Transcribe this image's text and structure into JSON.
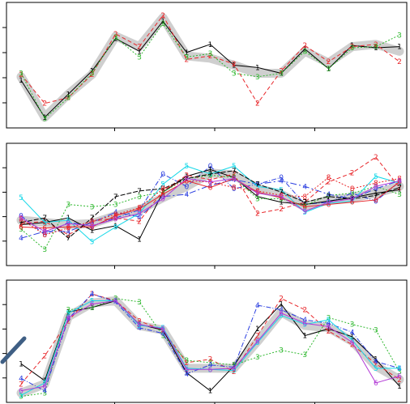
{
  "chart_data": [
    {
      "type": "line",
      "title": "",
      "xlabel": "",
      "ylabel": "",
      "x": [
        0,
        1,
        2,
        3,
        4,
        5,
        6,
        7,
        8,
        9,
        10,
        11,
        12,
        13,
        14,
        15,
        16
      ],
      "ylim": [
        0,
        10
      ],
      "grid": false,
      "consensus": {
        "color": "#cfcfcf",
        "values": [
          4.0,
          0.5,
          2.5,
          4.2,
          7.5,
          6.6,
          9.1,
          5.8,
          5.6,
          5.0,
          4.3,
          4.3,
          6.2,
          5.2,
          6.6,
          6.8,
          6.2
        ]
      },
      "series": [
        {
          "label": "1",
          "color": "#000000",
          "dash": "",
          "values": [
            3.7,
            0.5,
            2.5,
            4.5,
            7.3,
            6.2,
            8.8,
            6.1,
            6.8,
            5.0,
            4.8,
            4.3,
            6.4,
            4.7,
            6.7,
            6.5,
            6.6
          ]
        },
        {
          "label": "2",
          "color": "#e8272b",
          "dash": "5,3",
          "values": [
            4.2,
            1.7,
            2.2,
            4.2,
            7.7,
            6.6,
            9.3,
            5.5,
            5.8,
            5.1,
            1.7,
            4.5,
            6.7,
            5.3,
            6.6,
            6.8,
            5.3
          ]
        },
        {
          "label": "3",
          "color": "#2eb82e",
          "dash": "2,2",
          "values": [
            4.3,
            0.4,
            2.2,
            4.3,
            7.4,
            5.7,
            8.6,
            5.7,
            6.0,
            4.3,
            4.0,
            4.3,
            6.2,
            4.7,
            6.5,
            6.6,
            7.6
          ]
        }
      ]
    },
    {
      "type": "line",
      "title": "",
      "xlabel": "",
      "ylabel": "",
      "x": [
        0,
        1,
        2,
        3,
        4,
        5,
        6,
        7,
        8,
        9,
        10,
        11,
        12,
        13,
        14,
        15,
        16
      ],
      "ylim": [
        0,
        10
      ],
      "grid": false,
      "consensus": {
        "color": "#cfcfcf",
        "values": [
          3.6,
          3.4,
          3.2,
          3.3,
          4.0,
          4.5,
          5.6,
          6.6,
          7.8,
          7.6,
          6.4,
          5.9,
          4.8,
          5.4,
          5.6,
          6.0,
          6.6
        ]
      },
      "series": [
        {
          "label": "0",
          "color": "#2b3fe0",
          "dash": "6,2,1,2",
          "values": [
            4.0,
            2.3,
            3.4,
            3.1,
            3.8,
            4.5,
            7.7,
            6.6,
            8.4,
            6.4,
            6.8,
            7.4,
            5.0,
            5.2,
            6.0,
            5.3,
            7.0
          ]
        },
        {
          "label": "1",
          "color": "#000000",
          "dash": "",
          "values": [
            3.2,
            3.4,
            3.8,
            2.7,
            3.1,
            1.9,
            6.1,
            7.5,
            8.1,
            7.4,
            5.7,
            5.2,
            5.0,
            5.3,
            5.6,
            6.0,
            6.3
          ]
        },
        {
          "label": "2",
          "color": "#e8272b",
          "dash": "5,3",
          "values": [
            3.3,
            3.5,
            2.3,
            3.5,
            3.8,
            3.5,
            6.2,
            7.6,
            7.2,
            7.7,
            4.2,
            4.6,
            5.2,
            7.0,
            7.8,
            9.2,
            6.5
          ]
        },
        {
          "label": "3",
          "color": "#2eb82e",
          "dash": "2,2",
          "values": [
            2.8,
            1.0,
            5.0,
            4.8,
            5.0,
            5.7,
            6.1,
            7.3,
            7.6,
            7.4,
            5.5,
            5.5,
            4.9,
            5.8,
            6.0,
            6.6,
            5.9
          ]
        },
        {
          "label": "4",
          "color": "#2b3fe0",
          "dash": "8,3,2,3",
          "values": [
            2.0,
            2.6,
            2.6,
            3.4,
            4.3,
            3.9,
            5.7,
            5.9,
            6.7,
            7.2,
            6.8,
            7.1,
            6.6,
            5.9,
            5.5,
            6.4,
            7.1
          ]
        },
        {
          "label": "5",
          "color": "#14d8e8",
          "dash": "",
          "values": [
            5.6,
            3.4,
            3.6,
            1.7,
            3.0,
            4.2,
            6.8,
            8.4,
            7.7,
            8.4,
            6.6,
            6.3,
            4.3,
            5.1,
            5.3,
            7.5,
            6.9
          ]
        },
        {
          "label": "6",
          "color": "#e8272b",
          "dash": "",
          "values": [
            3.0,
            2.9,
            3.0,
            3.0,
            4.0,
            4.6,
            5.9,
            7.1,
            6.5,
            7.3,
            6.1,
            5.6,
            4.8,
            5.0,
            5.2,
            5.4,
            7.0
          ]
        },
        {
          "label": "7",
          "color": "#000000",
          "dash": "6,2",
          "values": [
            3.4,
            3.8,
            2.0,
            3.8,
            5.7,
            6.2,
            6.4,
            7.3,
            7.7,
            8.0,
            6.8,
            6.1,
            5.2,
            5.7,
            5.5,
            5.8,
            6.5
          ]
        },
        {
          "label": "8",
          "color": "#e8272b",
          "dash": "2,2",
          "values": [
            3.7,
            2.3,
            2.9,
            3.5,
            4.1,
            4.7,
            6.4,
            7.1,
            7.0,
            6.5,
            6.2,
            5.8,
            5.7,
            7.4,
            6.4,
            6.9,
            7.3
          ]
        },
        {
          "label": "9",
          "color": "#b23ad6",
          "dash": "",
          "values": [
            3.8,
            2.6,
            3.3,
            3.1,
            3.7,
            4.2,
            5.5,
            7.3,
            7.0,
            7.3,
            6.0,
            5.7,
            4.4,
            5.2,
            5.5,
            6.6,
            7.1
          ]
        }
      ]
    },
    {
      "type": "line",
      "title": "",
      "xlabel": "",
      "ylabel": "",
      "x": [
        0,
        1,
        2,
        3,
        4,
        5,
        6,
        7,
        8,
        9,
        10,
        11,
        12,
        13,
        14,
        15,
        16
      ],
      "ylim": [
        0,
        10
      ],
      "grid": false,
      "consensus": {
        "color": "#cfcfcf",
        "values": [
          0.4,
          1.2,
          7.2,
          8.4,
          8.6,
          6.4,
          6.0,
          2.6,
          2.6,
          2.6,
          5.0,
          7.6,
          6.4,
          6.2,
          5.0,
          2.8,
          1.6
        ]
      },
      "series": [
        {
          "label": "1",
          "color": "#000000",
          "dash": "",
          "values": [
            3.0,
            1.5,
            7.6,
            8.0,
            8.6,
            6.5,
            6.0,
            2.2,
            0.6,
            2.8,
            6.1,
            8.3,
            5.5,
            6.1,
            5.4,
            3.4,
            1.0
          ]
        },
        {
          "label": "2",
          "color": "#e8272b",
          "dash": "5,3",
          "values": [
            1.2,
            3.7,
            6.8,
            9.2,
            8.6,
            6.8,
            6.0,
            3.1,
            3.4,
            2.3,
            5.5,
            8.8,
            7.8,
            5.9,
            4.7,
            3.0,
            1.6
          ]
        },
        {
          "label": "3",
          "color": "#2eb82e",
          "dash": "2,2",
          "values": [
            0.1,
            0.4,
            7.8,
            8.0,
            8.8,
            8.5,
            5.5,
            3.3,
            3.1,
            2.9,
            3.6,
            4.2,
            3.8,
            7.1,
            6.5,
            6.0,
            2.3
          ]
        },
        {
          "label": "4",
          "color": "#2b3fe0",
          "dash": "6,2,1,2",
          "values": [
            1.7,
            0.6,
            7.0,
            9.2,
            8.5,
            6.2,
            5.7,
            2.1,
            2.9,
            2.7,
            8.2,
            7.8,
            6.9,
            6.6,
            5.8,
            3.2,
            2.6
          ]
        },
        {
          "label": "5",
          "color": "#14d8e8",
          "dash": "",
          "values": [
            0.2,
            1.3,
            7.5,
            8.6,
            8.6,
            6.4,
            6.2,
            2.6,
            2.5,
            2.4,
            4.9,
            7.3,
            6.5,
            6.9,
            5.1,
            2.6,
            2.6
          ]
        },
        {
          "label": "6",
          "color": "#b23ad6",
          "dash": "",
          "values": [
            0.6,
            1.0,
            7.1,
            8.3,
            8.6,
            6.5,
            6.1,
            2.5,
            2.5,
            2.6,
            5.0,
            7.5,
            6.6,
            6.3,
            4.9,
            1.3,
            1.9
          ]
        }
      ]
    }
  ]
}
